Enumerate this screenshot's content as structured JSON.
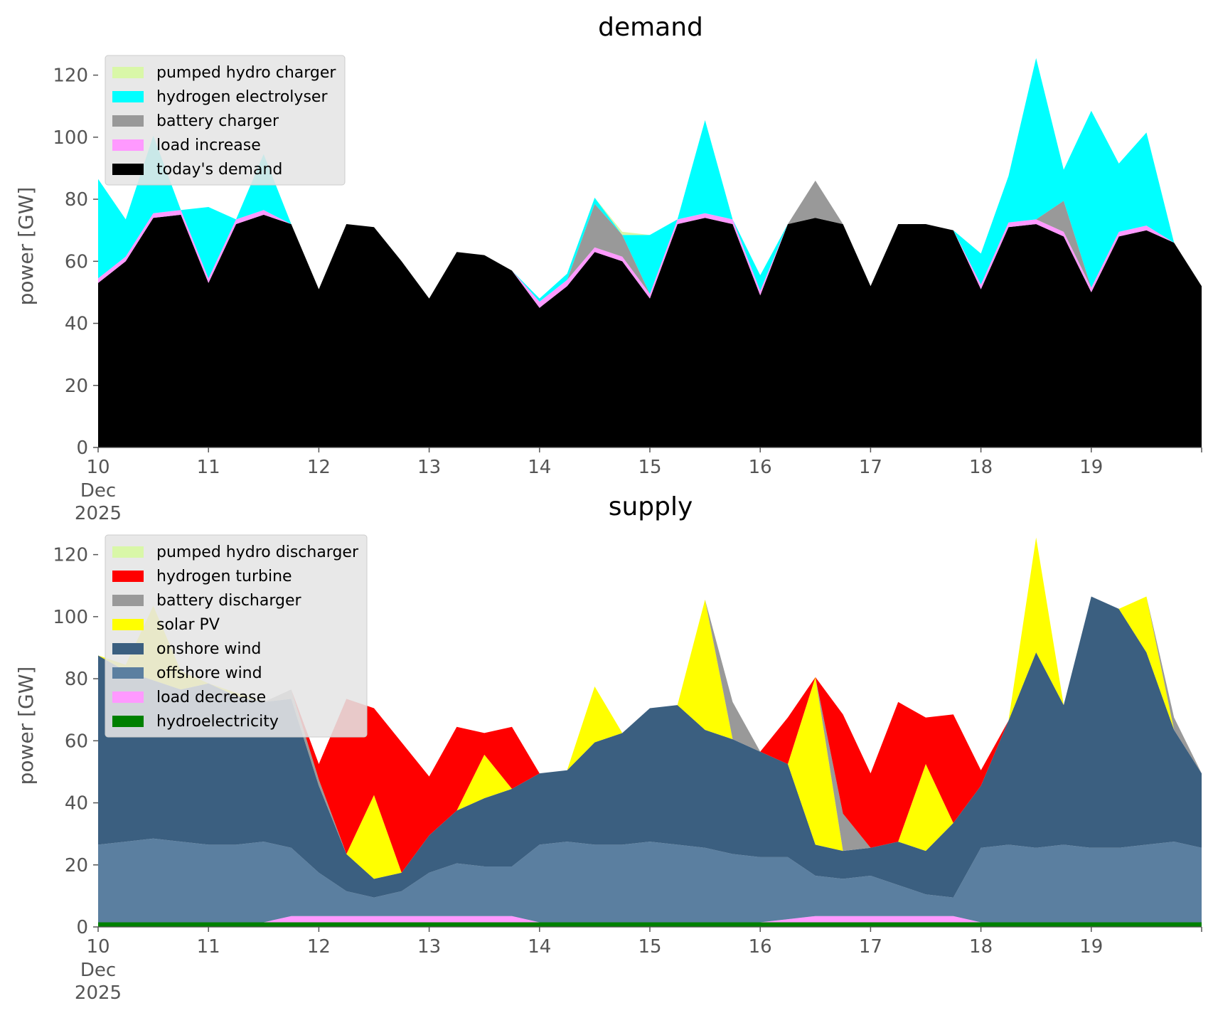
{
  "chart_data": [
    {
      "type": "area",
      "stacked": true,
      "title": "demand",
      "xlabel": "",
      "ylabel": "power [GW]",
      "xlim": [
        10,
        20
      ],
      "ylim": [
        0,
        130
      ],
      "x_ticks": [
        10,
        11,
        12,
        13,
        14,
        15,
        16,
        17,
        18,
        19
      ],
      "x_tick_labels": [
        "10",
        "11",
        "12",
        "13",
        "14",
        "15",
        "16",
        "17",
        "18",
        "19"
      ],
      "x_sublabel": [
        "Dec",
        "2025"
      ],
      "y_ticks": [
        0,
        20,
        40,
        60,
        80,
        100,
        120
      ],
      "y_tick_labels": [
        "0",
        "20",
        "40",
        "60",
        "80",
        "100",
        "120"
      ],
      "legend_position": "top-left",
      "x": [
        10,
        10.25,
        10.5,
        10.75,
        11,
        11.25,
        11.5,
        11.75,
        12,
        12.25,
        12.5,
        12.75,
        13,
        13.25,
        13.5,
        13.75,
        14,
        14.25,
        14.5,
        14.75,
        15,
        15.25,
        15.5,
        15.75,
        16,
        16.25,
        16.5,
        16.75,
        17,
        17.25,
        17.5,
        17.75,
        18,
        18.25,
        18.5,
        18.75,
        19,
        19.25,
        19.5,
        19.75,
        20
      ],
      "series": [
        {
          "name": "today's demand",
          "color": "#000000",
          "values": [
            53,
            60,
            74,
            75,
            53,
            72,
            75,
            72,
            51,
            72,
            71,
            60,
            48,
            63,
            62,
            57,
            45,
            52,
            63,
            60,
            48,
            72,
            74,
            72,
            49,
            72,
            74,
            72,
            52,
            72,
            72,
            70,
            51,
            71,
            72,
            68,
            50,
            68,
            70,
            66,
            52
          ]
        },
        {
          "name": "load increase",
          "color": "#ff99ff",
          "values": [
            1.5,
            1.5,
            1.5,
            1.5,
            1.5,
            1.5,
            1.5,
            0,
            0,
            0,
            0,
            0,
            0,
            0,
            0,
            0,
            2,
            2,
            1.5,
            1.5,
            1.5,
            1.5,
            1.5,
            1.5,
            1.5,
            0,
            0,
            0,
            0,
            0,
            0,
            0,
            1.5,
            1.5,
            1.5,
            1.5,
            1.5,
            1.5,
            1.5,
            0,
            0
          ]
        },
        {
          "name": "battery charger",
          "color": "#999999",
          "values": [
            0,
            0,
            0,
            0,
            0,
            0,
            0,
            0,
            0,
            0,
            0,
            0,
            0,
            0,
            0,
            0,
            0,
            0,
            14,
            7,
            0,
            0,
            0,
            0,
            0,
            0,
            12,
            0,
            0,
            0,
            0,
            0,
            0,
            0,
            0,
            10,
            0,
            0,
            0,
            0,
            0
          ]
        },
        {
          "name": "hydrogen electrolyser",
          "color": "#00ffff",
          "values": [
            32,
            12,
            25,
            0,
            23,
            0,
            18,
            0,
            0,
            0,
            0,
            0,
            0,
            0,
            0,
            0,
            1,
            2,
            2,
            0,
            19,
            0,
            30,
            0,
            5,
            0,
            0,
            0,
            0,
            0,
            0,
            0,
            10,
            15,
            52,
            10,
            57,
            22,
            30,
            0,
            0
          ]
        },
        {
          "name": "pumped hydro charger",
          "color": "#d9f7a8",
          "values": [
            0,
            0,
            0,
            0,
            0,
            0,
            0,
            0,
            0,
            0,
            0,
            0,
            0,
            0,
            0,
            0,
            0,
            0,
            0,
            1,
            0,
            0,
            0,
            0,
            0,
            0,
            0,
            0,
            0,
            0,
            0,
            0,
            0,
            0,
            0,
            0,
            0,
            0,
            0,
            0,
            0
          ]
        }
      ]
    },
    {
      "type": "area",
      "stacked": true,
      "title": "supply",
      "xlabel": "",
      "ylabel": "power [GW]",
      "xlim": [
        10,
        20
      ],
      "ylim": [
        0,
        130
      ],
      "x_ticks": [
        10,
        11,
        12,
        13,
        14,
        15,
        16,
        17,
        18,
        19
      ],
      "x_tick_labels": [
        "10",
        "11",
        "12",
        "13",
        "14",
        "15",
        "16",
        "17",
        "18",
        "19"
      ],
      "x_sublabel": [
        "Dec",
        "2025"
      ],
      "y_ticks": [
        0,
        20,
        40,
        60,
        80,
        100,
        120
      ],
      "y_tick_labels": [
        "0",
        "20",
        "40",
        "60",
        "80",
        "100",
        "120"
      ],
      "legend_position": "top-left",
      "x": [
        10,
        10.25,
        10.5,
        10.75,
        11,
        11.25,
        11.5,
        11.75,
        12,
        12.25,
        12.5,
        12.75,
        13,
        13.25,
        13.5,
        13.75,
        14,
        14.25,
        14.5,
        14.75,
        15,
        15.25,
        15.5,
        15.75,
        16,
        16.25,
        16.5,
        16.75,
        17,
        17.25,
        17.5,
        17.75,
        18,
        18.25,
        18.5,
        18.75,
        19,
        19.25,
        19.5,
        19.75,
        20
      ],
      "series": [
        {
          "name": "hydroelectricity",
          "color": "#008000",
          "values": [
            1.5,
            1.5,
            1.5,
            1.5,
            1.5,
            1.5,
            1.5,
            1.5,
            1.5,
            1.5,
            1.5,
            1.5,
            1.5,
            1.5,
            1.5,
            1.5,
            1.5,
            1.5,
            1.5,
            1.5,
            1.5,
            1.5,
            1.5,
            1.5,
            1.5,
            1.5,
            1.5,
            1.5,
            1.5,
            1.5,
            1.5,
            1.5,
            1.5,
            1.5,
            1.5,
            1.5,
            1.5,
            1.5,
            1.5,
            1.5,
            1.5
          ]
        },
        {
          "name": "load decrease",
          "color": "#ff99ff",
          "values": [
            0,
            0,
            0,
            0,
            0,
            0,
            0,
            2,
            2,
            2,
            2,
            2,
            2,
            2,
            2,
            2,
            0,
            0,
            0,
            0,
            0,
            0,
            0,
            0,
            0,
            1,
            2,
            2,
            2,
            2,
            2,
            2,
            0,
            0,
            0,
            0,
            0,
            0,
            0,
            0,
            0
          ]
        },
        {
          "name": "offshore wind",
          "color": "#5b7fa0",
          "values": [
            25,
            26,
            27,
            26,
            25,
            25,
            26,
            22,
            14,
            8,
            6,
            8,
            14,
            17,
            16,
            16,
            25,
            26,
            25,
            25,
            26,
            25,
            24,
            22,
            21,
            20,
            13,
            12,
            13,
            10,
            7,
            6,
            24,
            25,
            24,
            25,
            24,
            24,
            25,
            26,
            24
          ]
        },
        {
          "name": "onshore wind",
          "color": "#3b5f80",
          "values": [
            61,
            55,
            51,
            49,
            52,
            48,
            45,
            48,
            28,
            12,
            6,
            6,
            12,
            17,
            22,
            25,
            23,
            23,
            33,
            36,
            43,
            45,
            38,
            37,
            34,
            30,
            10,
            9,
            9,
            14,
            14,
            24,
            20,
            40,
            63,
            45,
            81,
            77,
            62,
            36,
            24
          ]
        },
        {
          "name": "solar PV",
          "color": "#ffff00",
          "values": [
            0,
            2,
            24,
            6,
            0,
            1,
            0,
            0,
            0,
            0,
            27,
            0,
            0,
            0,
            14,
            0,
            0,
            0,
            18,
            0,
            0,
            0,
            42,
            0,
            0,
            0,
            54,
            0,
            0,
            0,
            28,
            0,
            0,
            0,
            37,
            0,
            0,
            0,
            18,
            0,
            0
          ]
        },
        {
          "name": "battery discharger",
          "color": "#999999",
          "values": [
            0,
            0,
            0,
            0,
            0,
            0,
            0,
            3,
            2,
            0,
            0,
            0,
            0,
            0,
            0,
            0,
            0,
            0,
            0,
            0,
            0,
            0,
            0,
            12,
            0,
            0,
            0,
            12,
            0,
            0,
            0,
            0,
            0,
            0,
            0,
            0,
            0,
            0,
            0,
            4,
            0
          ]
        },
        {
          "name": "hydrogen turbine",
          "color": "#ff0000",
          "values": [
            0,
            0,
            0,
            0,
            0,
            0,
            0,
            0,
            5,
            50,
            28,
            42,
            19,
            27,
            7,
            20,
            0,
            0,
            0,
            0,
            0,
            0,
            0,
            0,
            0,
            15,
            0,
            32,
            24,
            45,
            15,
            35,
            5,
            0,
            0,
            0,
            0,
            0,
            0,
            0,
            0
          ]
        },
        {
          "name": "pumped hydro discharger",
          "color": "#d9f7a8",
          "values": [
            0,
            0,
            0,
            0,
            0,
            0,
            0,
            0,
            0,
            0,
            0,
            0,
            0,
            0,
            0,
            0,
            0,
            0,
            0,
            0,
            0,
            0,
            0,
            0,
            0,
            0,
            0,
            0,
            0,
            0,
            0,
            0,
            0,
            0,
            0,
            0,
            0,
            0,
            0,
            0,
            0
          ]
        }
      ]
    }
  ]
}
